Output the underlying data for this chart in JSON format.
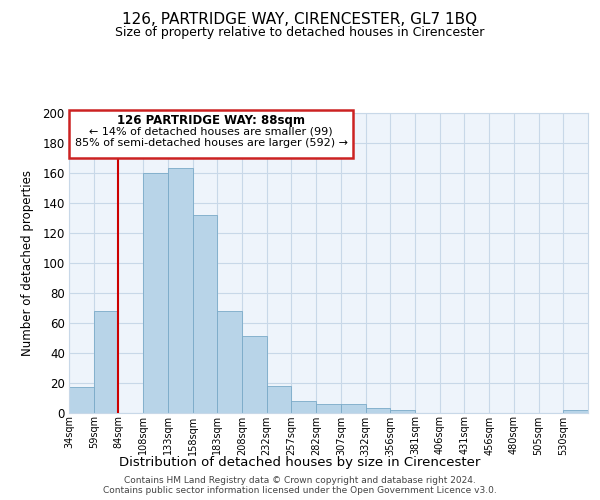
{
  "title": "126, PARTRIDGE WAY, CIRENCESTER, GL7 1BQ",
  "subtitle": "Size of property relative to detached houses in Cirencester",
  "xlabel": "Distribution of detached houses by size in Cirencester",
  "ylabel": "Number of detached properties",
  "bar_color": "#b8d4e8",
  "bar_edge_color": "#7aaac8",
  "background_color": "#eef4fb",
  "grid_color": "#c8d8e8",
  "vline_color": "#cc0000",
  "categories": [
    "34sqm",
    "59sqm",
    "84sqm",
    "108sqm",
    "133sqm",
    "158sqm",
    "183sqm",
    "208sqm",
    "232sqm",
    "257sqm",
    "282sqm",
    "307sqm",
    "332sqm",
    "356sqm",
    "381sqm",
    "406sqm",
    "431sqm",
    "456sqm",
    "480sqm",
    "505sqm",
    "530sqm"
  ],
  "values": [
    17,
    68,
    0,
    160,
    163,
    132,
    68,
    51,
    18,
    8,
    6,
    6,
    3,
    2,
    0,
    0,
    0,
    0,
    0,
    0,
    2
  ],
  "ylim": [
    0,
    200
  ],
  "yticks": [
    0,
    20,
    40,
    60,
    80,
    100,
    120,
    140,
    160,
    180,
    200
  ],
  "vline_x_index": 2,
  "annotation_title": "126 PARTRIDGE WAY: 88sqm",
  "annotation_line1": "← 14% of detached houses are smaller (99)",
  "annotation_line2": "85% of semi-detached houses are larger (592) →",
  "footer_line1": "Contains HM Land Registry data © Crown copyright and database right 2024.",
  "footer_line2": "Contains public sector information licensed under the Open Government Licence v3.0."
}
